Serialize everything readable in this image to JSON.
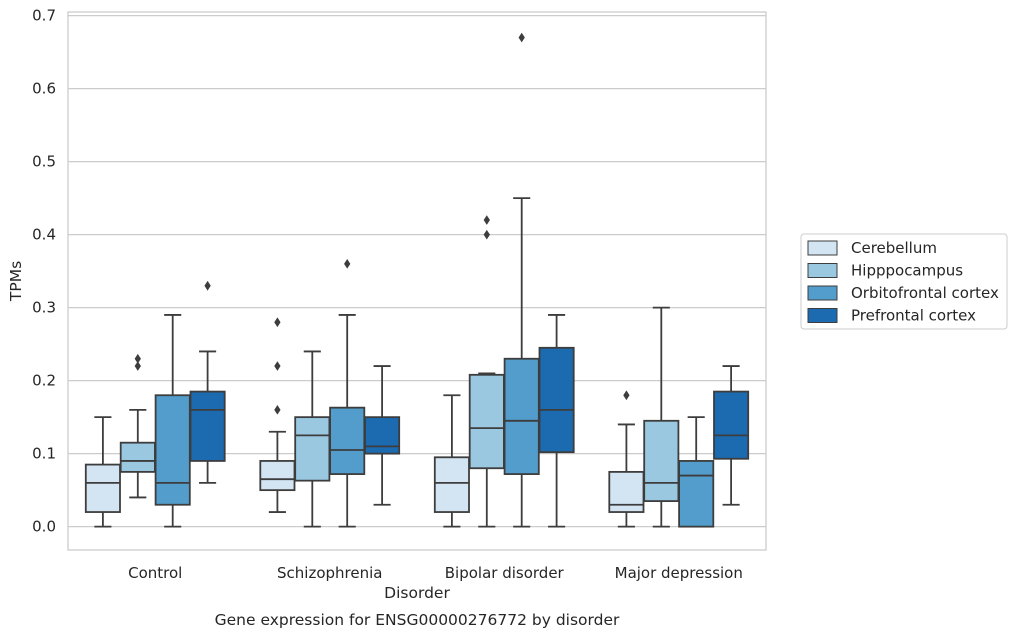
{
  "chart_data": {
    "type": "box",
    "title": "",
    "caption": "Gene expression for ENSG00000276772 by disorder",
    "xlabel": "Disorder",
    "ylabel": "TPMs",
    "ylim": [
      -0.032,
      0.705
    ],
    "yticks": [
      "0.0",
      "0.1",
      "0.2",
      "0.3",
      "0.4",
      "0.5",
      "0.6",
      "0.7"
    ],
    "ytick_values": [
      0.0,
      0.1,
      0.2,
      0.3,
      0.4,
      0.5,
      0.6,
      0.7
    ],
    "grid": true,
    "legend_position": "right",
    "categories": [
      "Control",
      "Schizophrenia",
      "Bipolar disorder",
      "Major depression"
    ],
    "series": [
      {
        "name": "Cerebellum",
        "color": "#d3e4f3",
        "boxes": [
          {
            "whislo": 0.0,
            "q1": 0.02,
            "med": 0.06,
            "q3": 0.085,
            "whishi": 0.15,
            "fliers": []
          },
          {
            "whislo": 0.02,
            "q1": 0.05,
            "med": 0.065,
            "q3": 0.09,
            "whishi": 0.13,
            "fliers": [
              0.16,
              0.22,
              0.28
            ]
          },
          {
            "whislo": 0.0,
            "q1": 0.02,
            "med": 0.06,
            "q3": 0.095,
            "whishi": 0.18,
            "fliers": []
          },
          {
            "whislo": 0.0,
            "q1": 0.02,
            "med": 0.03,
            "q3": 0.075,
            "whishi": 0.14,
            "fliers": [
              0.18
            ]
          }
        ]
      },
      {
        "name": "Hipppocampus",
        "color": "#9ac8e0",
        "boxes": [
          {
            "whislo": 0.04,
            "q1": 0.075,
            "med": 0.09,
            "q3": 0.115,
            "whishi": 0.16,
            "fliers": [
              0.22,
              0.23
            ]
          },
          {
            "whislo": 0.0,
            "q1": 0.063,
            "med": 0.125,
            "q3": 0.15,
            "whishi": 0.24,
            "fliers": []
          },
          {
            "whislo": 0.0,
            "q1": 0.08,
            "med": 0.135,
            "q3": 0.208,
            "whishi": 0.21,
            "fliers": [
              0.4,
              0.42
            ]
          },
          {
            "whislo": 0.0,
            "q1": 0.035,
            "med": 0.06,
            "q3": 0.145,
            "whishi": 0.3,
            "fliers": []
          }
        ]
      },
      {
        "name": "Orbitofrontal cortex",
        "color": "#529dcc",
        "boxes": [
          {
            "whislo": 0.0,
            "q1": 0.03,
            "med": 0.06,
            "q3": 0.18,
            "whishi": 0.29,
            "fliers": []
          },
          {
            "whislo": 0.0,
            "q1": 0.072,
            "med": 0.105,
            "q3": 0.163,
            "whishi": 0.29,
            "fliers": [
              0.36
            ]
          },
          {
            "whislo": 0.0,
            "q1": 0.072,
            "med": 0.145,
            "q3": 0.23,
            "whishi": 0.45,
            "fliers": [
              0.67
            ]
          },
          {
            "whislo": 0.0,
            "q1": 0.0,
            "med": 0.07,
            "q3": 0.09,
            "whishi": 0.15,
            "fliers": []
          }
        ]
      },
      {
        "name": "Prefrontal cortex",
        "color": "#1c6aaf",
        "boxes": [
          {
            "whislo": 0.06,
            "q1": 0.09,
            "med": 0.16,
            "q3": 0.185,
            "whishi": 0.24,
            "fliers": [
              0.33
            ]
          },
          {
            "whislo": 0.03,
            "q1": 0.1,
            "med": 0.11,
            "q3": 0.15,
            "whishi": 0.22,
            "fliers": []
          },
          {
            "whislo": 0.0,
            "q1": 0.102,
            "med": 0.16,
            "q3": 0.245,
            "whishi": 0.29,
            "fliers": []
          },
          {
            "whislo": 0.03,
            "q1": 0.093,
            "med": 0.125,
            "q3": 0.185,
            "whishi": 0.22,
            "fliers": []
          }
        ]
      }
    ]
  }
}
